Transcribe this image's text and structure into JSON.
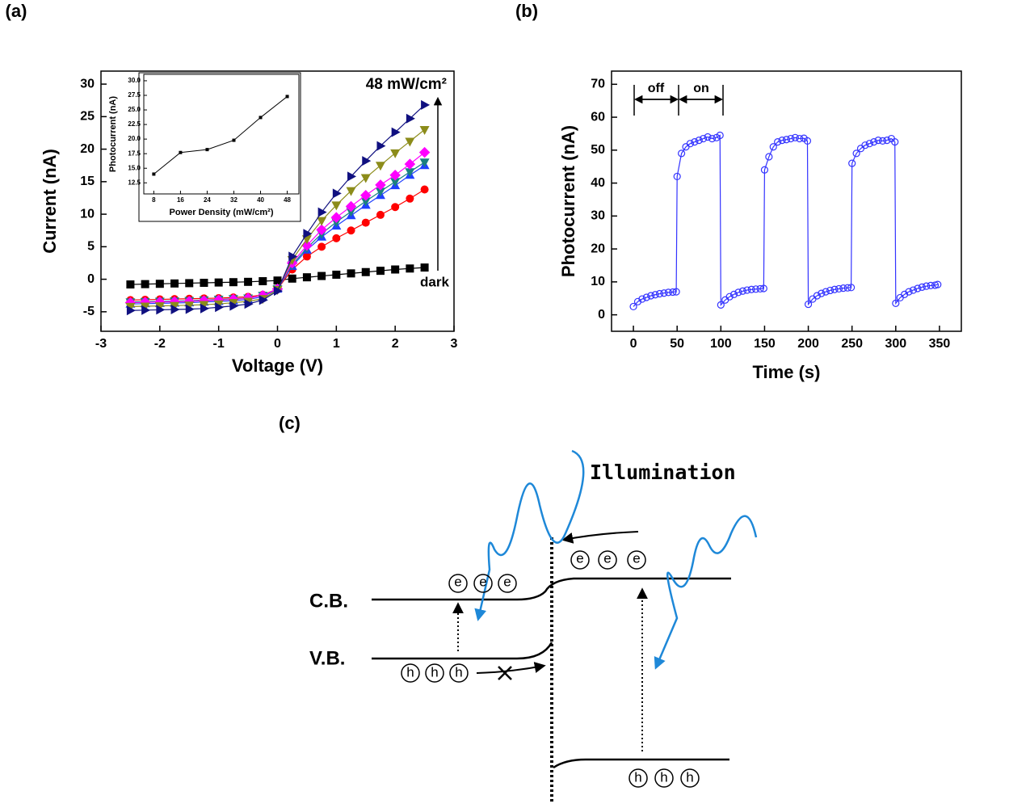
{
  "chart_data": [
    {
      "type": "line",
      "panel_label": "(a)",
      "x_label": "Voltage (V)",
      "y_label": "Current (nA)",
      "xlim": [
        -3,
        3
      ],
      "ylim": [
        -8,
        32
      ],
      "xticks": [
        -3,
        -2,
        -1,
        0,
        1,
        2,
        3
      ],
      "yticks": [
        -5,
        0,
        5,
        10,
        15,
        20,
        25,
        30
      ],
      "annotations": [
        "48 mW/cm²",
        "dark"
      ],
      "x": [
        -2.5,
        -2.25,
        -2,
        -1.75,
        -1.5,
        -1.25,
        -1,
        -0.75,
        -0.5,
        -0.25,
        0,
        0.25,
        0.5,
        0.75,
        1,
        1.25,
        1.5,
        1.75,
        2,
        2.25,
        2.5
      ],
      "series": [
        {
          "color": "#000000",
          "marker": "square",
          "values": [
            -0.8,
            -0.75,
            -0.7,
            -0.65,
            -0.6,
            -0.55,
            -0.5,
            -0.45,
            -0.4,
            -0.3,
            -0.2,
            0.1,
            0.3,
            0.5,
            0.7,
            0.9,
            1.1,
            1.3,
            1.5,
            1.65,
            1.8
          ]
        },
        {
          "color": "#ff0000",
          "marker": "circle",
          "values": [
            -3.2,
            -3.15,
            -3.1,
            -3.05,
            -3,
            -2.95,
            -2.9,
            -2.8,
            -2.7,
            -2.4,
            -1.5,
            1.5,
            3.5,
            5,
            6.3,
            7.5,
            8.7,
            9.9,
            11.1,
            12.4,
            13.8
          ]
        },
        {
          "color": "#1f3fff",
          "marker": "triangle-up",
          "values": [
            -3.8,
            -3.75,
            -3.7,
            -3.65,
            -3.6,
            -3.5,
            -3.4,
            -3.3,
            -3.1,
            -2.7,
            -1.5,
            2,
            4.5,
            6.5,
            8.2,
            9.8,
            11.4,
            12.9,
            14.4,
            16,
            17.5
          ]
        },
        {
          "color": "#1a8080",
          "marker": "triangle-down",
          "values": [
            -3.5,
            -3.45,
            -3.4,
            -3.35,
            -3.3,
            -3.2,
            -3.1,
            -3,
            -2.9,
            -2.5,
            -1.5,
            2.2,
            4.8,
            7,
            8.8,
            10.4,
            12,
            13.5,
            15,
            16.5,
            18
          ]
        },
        {
          "color": "#ff00ff",
          "marker": "diamond",
          "values": [
            -3.6,
            -3.55,
            -3.5,
            -3.45,
            -3.4,
            -3.3,
            -3.2,
            -3.1,
            -2.9,
            -2.5,
            -1.5,
            2.5,
            5.2,
            7.6,
            9.5,
            11.2,
            12.9,
            14.5,
            16,
            17.7,
            19.5
          ]
        },
        {
          "color": "#8c8c1a",
          "marker": "triangle-down",
          "values": [
            -4.2,
            -4.15,
            -4.1,
            -4.05,
            -4,
            -3.9,
            -3.8,
            -3.6,
            -3.4,
            -3,
            -1.6,
            3,
            6.2,
            9,
            11.4,
            13.6,
            15.6,
            17.5,
            19.4,
            21.2,
            23
          ]
        },
        {
          "color": "#101080",
          "marker": "triangle-right",
          "values": [
            -4.8,
            -4.75,
            -4.7,
            -4.65,
            -4.6,
            -4.5,
            -4.3,
            -4.1,
            -3.8,
            -3.2,
            -1.8,
            3.5,
            7,
            10.3,
            13.2,
            15.8,
            18.2,
            20.5,
            22.6,
            24.7,
            26.8
          ]
        }
      ]
    },
    {
      "type": "line",
      "x_label": "Power Density (mW/cm²)",
      "y_label": "Photocurrent (nA)",
      "xlim": [
        5,
        51.5
      ],
      "ylim": [
        10.6,
        31.1
      ],
      "xticks": [
        8,
        16,
        24,
        32,
        40,
        48
      ],
      "yticks": [
        12.5,
        {
          "value": 15,
          "label": "15.0"
        },
        17.5,
        {
          "value": 20,
          "label": "20.0"
        },
        22.5,
        {
          "value": 25,
          "label": "25.0"
        },
        27.5,
        {
          "value": 30,
          "label": "30.0"
        }
      ],
      "x": [
        8,
        16,
        24,
        32,
        40,
        48
      ],
      "series": [
        {
          "color": "#000000",
          "marker": "square",
          "values": [
            14,
            17.7,
            18.2,
            19.8,
            23.7,
            27.3
          ]
        }
      ]
    },
    {
      "type": "line",
      "panel_label": "(b)",
      "x_label": "Time (s)",
      "y_label": "Photocurrent (nA)",
      "xlim": [
        -25,
        375
      ],
      "ylim": [
        -5,
        74
      ],
      "xticks": [
        0,
        50,
        100,
        150,
        200,
        250,
        300,
        350
      ],
      "yticks": [
        0,
        10,
        20,
        30,
        40,
        50,
        60,
        70
      ],
      "annotations": [
        "off",
        "on"
      ],
      "x": [
        0,
        5,
        10,
        15,
        20,
        25,
        30,
        35,
        40,
        45,
        49,
        50,
        55,
        60,
        65,
        70,
        75,
        80,
        85,
        90,
        95,
        99,
        100,
        105,
        110,
        115,
        120,
        125,
        130,
        135,
        140,
        145,
        149,
        150,
        155,
        160,
        165,
        170,
        175,
        180,
        185,
        190,
        195,
        199,
        200,
        205,
        210,
        215,
        220,
        225,
        230,
        235,
        240,
        245,
        249,
        250,
        255,
        260,
        265,
        270,
        275,
        280,
        285,
        290,
        295,
        299,
        300,
        305,
        310,
        315,
        320,
        325,
        330,
        335,
        340,
        345,
        348
      ],
      "series": [
        {
          "color": "#3333ff",
          "marker": "open-circle",
          "values": [
            2.5,
            4,
            4.8,
            5.3,
            5.8,
            6.1,
            6.4,
            6.6,
            6.8,
            6.9,
            7,
            42,
            49,
            51,
            52,
            52.5,
            53,
            53.5,
            54,
            53.5,
            53.8,
            54.5,
            3,
            4.5,
            5.5,
            6.2,
            6.8,
            7.2,
            7.5,
            7.7,
            7.8,
            7.9,
            8,
            44,
            48,
            51,
            52.5,
            53,
            53.2,
            53.5,
            53.8,
            53.5,
            53.6,
            52.8,
            3.2,
            4.8,
            5.8,
            6.5,
            7,
            7.4,
            7.7,
            7.9,
            8.1,
            8.2,
            8.3,
            46,
            49,
            50.5,
            51.5,
            52,
            52.5,
            53,
            52.8,
            53,
            53.5,
            52.5,
            3.5,
            5.2,
            6.2,
            7,
            7.5,
            8,
            8.4,
            8.7,
            8.9,
            9,
            9.2
          ]
        }
      ]
    }
  ],
  "diagram": {
    "panel_label": "(c)",
    "illumination": "Illumination",
    "conduction_band": "C.B.",
    "valence_band": "V.B.",
    "electron": "e",
    "hole": "h"
  }
}
